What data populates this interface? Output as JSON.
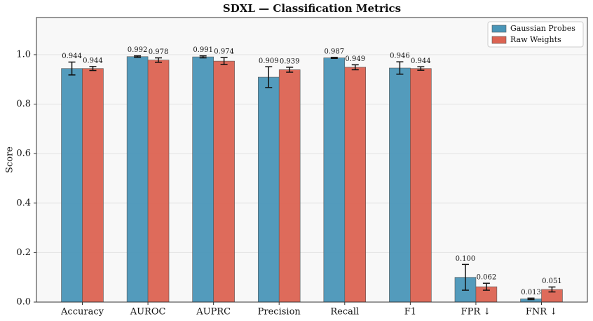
{
  "chart_data": {
    "type": "bar",
    "title": "SDXL — Classification Metrics",
    "y_label": "Score",
    "categories": [
      "Accuracy",
      "AUROC",
      "AUPRC",
      "Precision",
      "Recall",
      "F1",
      "FPR ↓",
      "FNR ↓"
    ],
    "series": [
      {
        "name": "Gaussian Probes",
        "color": "#4a96b8",
        "values": [
          0.944,
          0.992,
          0.991,
          0.909,
          0.987,
          0.946,
          0.1,
          0.013
        ],
        "value_labels": [
          "0.944",
          "0.992",
          "0.991",
          "0.909",
          "0.987",
          "0.946",
          "0.100",
          "0.013"
        ],
        "errors": [
          0.026,
          0.003,
          0.004,
          0.042,
          0.002,
          0.025,
          0.052,
          0.003
        ]
      },
      {
        "name": "Raw Weights",
        "color": "#dc6352",
        "values": [
          0.944,
          0.978,
          0.974,
          0.939,
          0.949,
          0.944,
          0.062,
          0.051
        ],
        "value_labels": [
          "0.944",
          "0.978",
          "0.974",
          "0.939",
          "0.949",
          "0.944",
          "0.062",
          "0.051"
        ],
        "errors": [
          0.008,
          0.009,
          0.014,
          0.01,
          0.01,
          0.007,
          0.014,
          0.01
        ]
      }
    ],
    "ylim": [
      0,
      1.15
    ],
    "yticks": [
      {
        "value": 0,
        "label": "0.0"
      },
      {
        "value": 0.2,
        "label": "0.2"
      },
      {
        "value": 0.4,
        "label": "0.4"
      },
      {
        "value": 0.6,
        "label": "0.6"
      },
      {
        "value": 0.8,
        "label": "0.8"
      },
      {
        "value": 1.0,
        "label": "1.0"
      }
    ],
    "grid": true,
    "legend": "upper right"
  }
}
